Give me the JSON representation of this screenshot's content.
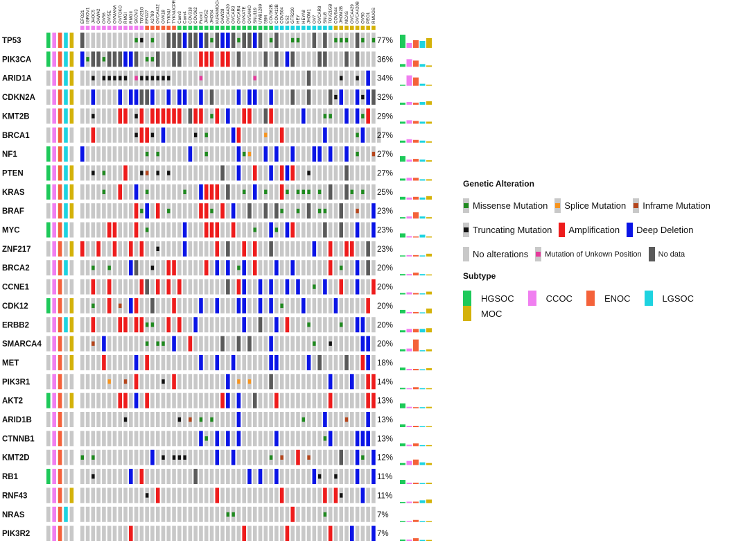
{
  "colors": {
    "background_cell": "#c8c8c8",
    "missense": "#1f8a1f",
    "splice": "#f7941d",
    "inframe": "#b5451b",
    "truncating": "#111111",
    "amplification": "#ee1c1c",
    "deep_deletion": "#0a14e6",
    "no_alteration": "#c8c8c8",
    "unknown_position": "#e6399b",
    "no_data": "#5a5a5a",
    "HGSOC": "#1ec95a",
    "CCOC": "#f07ff0",
    "ENOC": "#f4623a",
    "LGSOC": "#1ed3e0",
    "MOC": "#d4b20a"
  },
  "legend": {
    "genetic_alteration_title": "Genetic Alteration",
    "missense": "Missense Mutation",
    "splice": "Splice Mutation",
    "inframe": "Inframe Mutation",
    "truncating": "Truncating Mutation",
    "amplification": "Amplification",
    "deep_deletion": "Deep Deletion",
    "no_alterations": "No alterations",
    "unknown_position": "Mutation of Unkown Position",
    "no_data": "No data",
    "subtype_title": "Subtype",
    "subtypes": [
      "HGSOC",
      "CCOC",
      "ENOC",
      "LGSOC",
      "MOC"
    ]
  },
  "chart_data": {
    "type": "oncoprint",
    "genes": [
      "TP53",
      "PIK3CA",
      "ARID1A",
      "CDKN2A",
      "KMT2B",
      "BRCA1",
      "NF1",
      "PTEN",
      "KRAS",
      "BRAF",
      "MYC",
      "ZNF217",
      "BRCA2",
      "CCNE1",
      "CDK12",
      "ERBB2",
      "SMARCA4",
      "MET",
      "PIK3R1",
      "AKT2",
      "ARID1B",
      "CTNNB1",
      "KMT2D",
      "RB1",
      "RNF43",
      "NRAS",
      "PIK3R2"
    ],
    "percentages": [
      "77%",
      "36%",
      "34%",
      "32%",
      "29%",
      "27%",
      "27%",
      "27%",
      "25%",
      "23%",
      "23%",
      "23%",
      "20%",
      "20%",
      "20%",
      "20%",
      "20%",
      "18%",
      "14%",
      "13%",
      "13%",
      "13%",
      "12%",
      "11%",
      "11%",
      "7%",
      "7%"
    ],
    "cell_lines": [
      "EFO21",
      "IGROV1",
      "JHOC5",
      "OAW42",
      "OV56",
      "OVISE",
      "OVMANA",
      "OVTOKO",
      "RMGI",
      "RMGII",
      "SKOV3",
      "TOV21G",
      "EFO27",
      "A2780",
      "OVCA432",
      "OVK18",
      "TYKNU",
      "TYKNUCPR",
      "Caov3",
      "Caov4",
      "COV318",
      "COV362",
      "Fuov1",
      "JHOS2",
      "JHOS4",
      "KURAMOCHI",
      "OAW28",
      "OVCA420",
      "OVCAR3",
      "OVCAR4",
      "OVKATE",
      "OVSAHO",
      "SNU119",
      "UWB1289",
      "59M",
      "COV362B",
      "COV413B",
      "COV504",
      "ES2",
      "GTR230",
      "HEY",
      "HEYA8",
      "JHOM1",
      "OV7",
      "OVCAR8",
      "SNU8",
      "TOV21GB",
      "COV644",
      "JHOM2B",
      "MCAS",
      "OVCA429",
      "OVCA420B",
      "OV90",
      "PEO1",
      "RMUGS"
    ],
    "sample_subtypes": [
      "CCOC",
      "CCOC",
      "CCOC",
      "CCOC",
      "CCOC",
      "CCOC",
      "CCOC",
      "CCOC",
      "CCOC",
      "CCOC",
      "CCOC",
      "CCOC",
      "ENOC",
      "ENOC",
      "ENOC",
      "ENOC",
      "ENOC",
      "ENOC",
      "HGSOC",
      "HGSOC",
      "HGSOC",
      "HGSOC",
      "HGSOC",
      "HGSOC",
      "HGSOC",
      "HGSOC",
      "HGSOC",
      "HGSOC",
      "HGSOC",
      "HGSOC",
      "HGSOC",
      "HGSOC",
      "HGSOC",
      "HGSOC",
      "HGSOC",
      "HGSOC",
      "LGSOC",
      "LGSOC",
      "LGSOC",
      "LGSOC",
      "LGSOC",
      "LGSOC",
      "LGSOC",
      "LGSOC",
      "LGSOC",
      "LGSOC",
      "LGSOC",
      "MOC",
      "MOC",
      "MOC",
      "MOC",
      "MOC",
      "MOC",
      "MOC",
      "MOC"
    ],
    "gene_subtype_indicators": [
      [
        "HGSOC",
        "CCOC",
        "ENOC",
        "LGSOC",
        "MOC"
      ],
      [
        "HGSOC",
        "CCOC",
        "ENOC",
        "LGSOC",
        "MOC"
      ],
      [
        "HGSOC",
        "CCOC",
        "ENOC",
        "LGSOC",
        "MOC"
      ],
      [
        "HGSOC",
        "CCOC",
        "ENOC",
        "LGSOC",
        "MOC"
      ],
      [
        "HGSOC",
        "CCOC",
        "ENOC",
        "LGSOC",
        "MOC"
      ],
      [
        "HGSOC",
        "CCOC",
        "ENOC",
        "LGSOC",
        "MOC"
      ],
      [
        "HGSOC",
        "CCOC",
        "ENOC",
        "LGSOC",
        "MOC"
      ],
      [
        "HGSOC",
        "CCOC",
        "ENOC",
        "LGSOC",
        "MOC"
      ],
      [
        "HGSOC",
        "CCOC",
        "ENOC",
        "LGSOC",
        "MOC"
      ],
      [
        "HGSOC",
        "CCOC",
        "ENOC",
        "LGSOC",
        "MOC"
      ],
      [
        "HGSOC",
        "CCOC",
        "ENOC",
        "LGSOC",
        "MOC"
      ],
      [
        "HGSOC",
        "CCOC",
        "ENOC",
        "LGSOC",
        "MOC"
      ],
      [
        "HGSOC",
        "CCOC",
        "ENOC",
        "LGSOC",
        "MOC"
      ],
      [
        "HGSOC",
        "CCOC",
        "ENOC",
        "LGSOC",
        "MOC"
      ],
      [
        "HGSOC",
        "CCOC",
        "ENOC",
        "LGSOC",
        "MOC"
      ],
      [
        "HGSOC",
        "CCOC",
        "ENOC",
        "LGSOC",
        "MOC"
      ],
      [
        "HGSOC",
        "CCOC",
        "ENOC",
        "LGSOC",
        "MOC"
      ],
      [
        "HGSOC",
        "CCOC",
        "ENOC",
        "LGSOC",
        "MOC"
      ],
      [
        "HGSOC",
        "CCOC",
        "ENOC",
        "LGSOC",
        "MOC"
      ],
      [
        "HGSOC",
        "CCOC",
        "ENOC",
        "LGSOC",
        "MOC"
      ],
      [
        "HGSOC",
        "CCOC",
        "ENOC",
        "LGSOC",
        "MOC"
      ],
      [
        "HGSOC",
        "CCOC",
        "ENOC",
        "LGSOC",
        "MOC"
      ],
      [
        "HGSOC",
        "CCOC",
        "ENOC",
        "LGSOC",
        "MOC"
      ],
      [
        "HGSOC",
        "CCOC",
        "ENOC",
        "LGSOC",
        "MOC"
      ],
      [
        "HGSOC",
        "CCOC",
        "ENOC",
        "LGSOC",
        "MOC"
      ],
      [
        "HGSOC",
        "CCOC",
        "ENOC",
        "LGSOC",
        "MOC"
      ],
      [
        "HGSOC",
        "CCOC",
        "ENOC",
        "LGSOC",
        "MOC"
      ]
    ],
    "gene_subtype_indicator_present": [
      [
        1,
        1,
        1,
        1,
        1
      ],
      [
        1,
        1,
        1,
        1,
        1
      ],
      [
        0,
        1,
        1,
        1,
        1
      ],
      [
        0,
        1,
        1,
        1,
        1
      ],
      [
        0,
        1,
        1,
        1,
        1
      ],
      [
        0,
        1,
        1,
        1,
        0
      ],
      [
        1,
        1,
        1,
        1,
        0
      ],
      [
        1,
        1,
        1,
        1,
        1
      ],
      [
        1,
        1,
        1,
        1,
        1
      ],
      [
        0,
        1,
        1,
        1,
        1
      ],
      [
        1,
        1,
        1,
        1,
        0
      ],
      [
        0,
        1,
        1,
        0,
        1
      ],
      [
        0,
        1,
        1,
        1,
        0
      ],
      [
        0,
        1,
        1,
        0,
        0
      ],
      [
        1,
        1,
        1,
        0,
        1
      ],
      [
        0,
        1,
        1,
        1,
        1
      ],
      [
        0,
        1,
        1,
        0,
        1
      ],
      [
        0,
        1,
        1,
        0,
        1
      ],
      [
        0,
        1,
        1,
        0,
        0
      ],
      [
        1,
        1,
        1,
        0,
        1
      ],
      [
        0,
        1,
        1,
        0,
        0
      ],
      [
        0,
        1,
        1,
        0,
        0
      ],
      [
        0,
        1,
        1,
        0,
        0
      ],
      [
        1,
        1,
        1,
        0,
        0
      ],
      [
        0,
        1,
        1,
        0,
        1
      ],
      [
        0,
        1,
        1,
        1,
        0
      ],
      [
        0,
        1,
        1,
        0,
        0
      ]
    ],
    "gene_subtype_bar_values": [
      [
        0.95,
        0.35,
        0.55,
        0.5,
        0.7
      ],
      [
        0.2,
        0.55,
        0.45,
        0.2,
        0.1
      ],
      [
        0.02,
        0.75,
        0.6,
        0.15,
        0.05
      ],
      [
        0.15,
        0.2,
        0.15,
        0.2,
        0.25
      ],
      [
        0.15,
        0.25,
        0.2,
        0.15,
        0.15
      ],
      [
        0.15,
        0.25,
        0.2,
        0.15,
        0.1
      ],
      [
        0.4,
        0.15,
        0.2,
        0.15,
        0.1
      ],
      [
        0.15,
        0.2,
        0.2,
        0.1,
        0.1
      ],
      [
        0.2,
        0.15,
        0.2,
        0.15,
        0.25
      ],
      [
        0.1,
        0.15,
        0.45,
        0.15,
        0.1
      ],
      [
        0.3,
        0.1,
        0.05,
        0.2,
        0.05
      ],
      [
        0.05,
        0.1,
        0.1,
        0.0,
        0.2
      ],
      [
        0.1,
        0.1,
        0.2,
        0.1,
        0.05
      ],
      [
        0.1,
        0.15,
        0.1,
        0.0,
        0.2
      ],
      [
        0.25,
        0.1,
        0.1,
        0.0,
        0.35
      ],
      [
        0.15,
        0.25,
        0.25,
        0.25,
        0.3
      ],
      [
        0.15,
        0.2,
        0.85,
        0.0,
        0.15
      ],
      [
        0.2,
        0.1,
        0.1,
        0.0,
        0.15
      ],
      [
        0.1,
        0.05,
        0.15,
        0.0,
        0.05
      ],
      [
        0.35,
        0.1,
        0.05,
        0.0,
        0.1
      ],
      [
        0.2,
        0.1,
        0.1,
        0.0,
        0.0
      ],
      [
        0.2,
        0.1,
        0.2,
        0.0,
        0.0
      ],
      [
        0.15,
        0.3,
        0.4,
        0.2,
        0.15
      ],
      [
        0.3,
        0.1,
        0.1,
        0.0,
        0.1
      ],
      [
        0.05,
        0.1,
        0.1,
        0.2,
        0.25
      ],
      [
        0.05,
        0.05,
        0.15,
        0.0,
        0.0
      ],
      [
        0.1,
        0.1,
        0.2,
        0.0,
        0.0
      ]
    ],
    "matrix": [
      "N.........MT.M..NNNDNNDNMNDDNMNNDN.MN..MM..N.N.MMM.NM.M",
      "DMNNMNNNDDN.MMN..NN...AAA.AA.N....N.N.DN....NN...N.N...",
      "..T.TTTTT.UTTTTTT.....U.........U.........N.....T..T.D.",
      "..D....D.DDNND..D.DD..D.N....D.DD..D...N..N...NTD..DTDN",
      "..T....AA.TA.AAAAAA.NAA.MA.D..AA..NA.....D...MM..D.DMA.",
      "..A.......TAAT.D.....T.M....DA....S..A.......D.....MD...",
      "D...........M.M.....D..M.....DMS..D.D..D...DD.D..D.M..I",
      "..T.M...A..TI.T.T.........N..D..A..D.ADA..T......N.....",
      "....M..A..D.M......M..DAAA.N..M.D.M..AM.MMM.M.N..NM.M..",
      "..........AMD.A.M.....AAM.A.D..N..N.NM..M.N.MM..N..I..D",
      ".....AA...A.M......D...AAA..A...M..DM.DA.....N..N..D..D",
      "A..A..A..A.A..T....D.....A.N..A.A..N.......D..A..AA..N.",
      "..M..M...DN..T..AA.....A.D.D.MD.A...D..D......A.M..D.N.",
      "..A..A.....AN.A.A.A........N.AD..D.D..D.D..M.D..A..D..A",
      "..M..A.I.DA..N...A....D..D...DD..D.D.M...D.....D.....A",
      "..A....AA.AAMM..A.A..D........D..N..D.A...M.....M..DD..",
      "..I.D.......M.MM.D..A.....N..N.N...D.......M..T.....DD.",
      "....A.....D.A.........D..D..D......DD.....D.N....N..AD.",
      ".....S..I.A....T.A.........D.S.S...N..........D...D..AA",
      ".......AA.D.A.............AD.D..N...A.........A......AA",
      "........T.........T.I.M.M....D...........M...D...I...D.",
      "......................DM.D.D.D......D........MD....DDD.",
      "M.M..........D.T.TTT.....D..D......M.I..A.I.....N..DM.D",
      "..T......D.A.........N.........D.D..D......DT..T...D..D",
      "............T.A..........A...........A.......A.AT...D..",
      "...........................MM..........A.....M.........",
      ".........A....................A.......A.......A...D...D"
    ],
    "matrix_code_legend": {
      ".": "No alterations",
      "M": "Missense Mutation",
      "S": "Splice Mutation",
      "I": "Inframe Mutation",
      "T": "Truncating Mutation",
      "A": "Amplification",
      "D": "Deep Deletion",
      "U": "Mutation of Unkown Position",
      "N": "No data"
    }
  }
}
